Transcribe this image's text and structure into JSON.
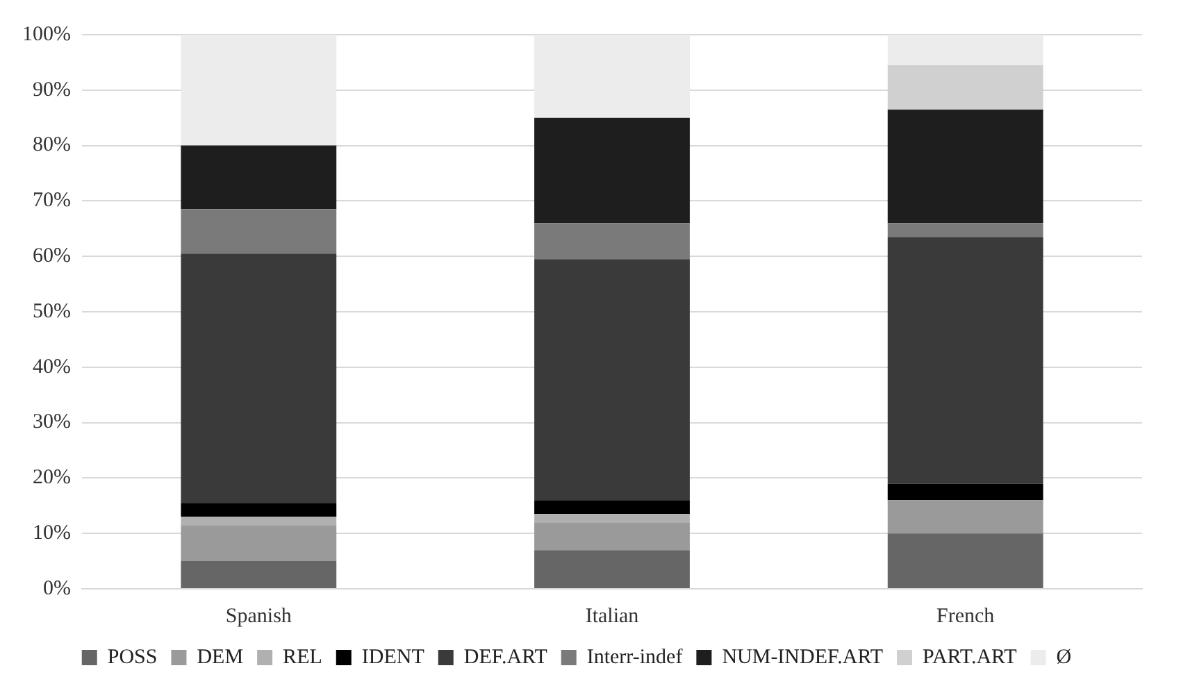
{
  "chart_data": {
    "type": "bar",
    "stacked": true,
    "categories": [
      "Spanish",
      "Italian",
      "French"
    ],
    "series": [
      {
        "name": "POSS",
        "color": "#666666",
        "values": [
          5,
          7,
          10
        ]
      },
      {
        "name": "DEM",
        "color": "#9a9a9a",
        "values": [
          6.5,
          5,
          6
        ]
      },
      {
        "name": "REL",
        "color": "#b0b0b0",
        "values": [
          1.5,
          1.5,
          0
        ]
      },
      {
        "name": "IDENT",
        "color": "#000000",
        "values": [
          2.5,
          2.5,
          3
        ]
      },
      {
        "name": "DEF.ART",
        "color": "#3a3a3a",
        "values": [
          45,
          43.5,
          44.5
        ]
      },
      {
        "name": "Interr-indef",
        "color": "#7a7a7a",
        "values": [
          8,
          6.5,
          2.5
        ]
      },
      {
        "name": "NUM-INDEF.ART",
        "color": "#1e1e1e",
        "values": [
          11.5,
          19,
          20.5
        ]
      },
      {
        "name": "PART.ART",
        "color": "#d0d0d0",
        "values": [
          0,
          0,
          8
        ]
      },
      {
        "name": "Ø",
        "color": "#ececec",
        "values": [
          20,
          15,
          5.5
        ]
      }
    ],
    "ylim": [
      0,
      100
    ],
    "yticks": [
      {
        "value": 0,
        "label": "0%"
      },
      {
        "value": 10,
        "label": "10%"
      },
      {
        "value": 20,
        "label": "20%"
      },
      {
        "value": 30,
        "label": "30%"
      },
      {
        "value": 40,
        "label": "40%"
      },
      {
        "value": 50,
        "label": "50%"
      },
      {
        "value": 60,
        "label": "60%"
      },
      {
        "value": 70,
        "label": "70%"
      },
      {
        "value": 80,
        "label": "80%"
      },
      {
        "value": 90,
        "label": "90%"
      },
      {
        "value": 100,
        "label": "100%"
      }
    ],
    "grid": "y",
    "legend": "bottom"
  }
}
